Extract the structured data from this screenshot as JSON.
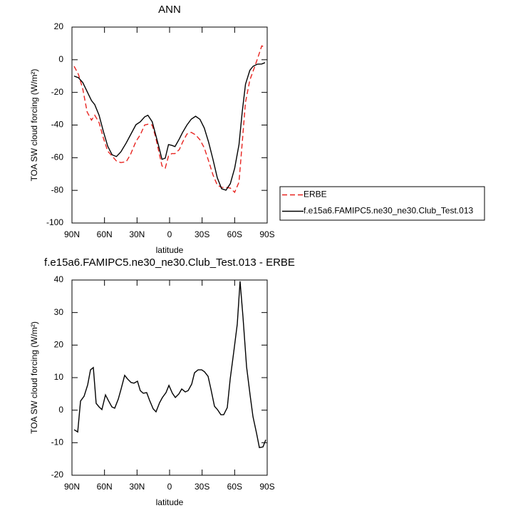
{
  "chart_data": [
    {
      "type": "line",
      "title": "ANN",
      "xlabel": "latitude",
      "ylabel": "TOA SW cloud forcing (W/m²)",
      "x": [
        88,
        84,
        80,
        76,
        72,
        69,
        65,
        61,
        57,
        53,
        49,
        45,
        40,
        36,
        31,
        27,
        23,
        20,
        16,
        13,
        10,
        7,
        4,
        1,
        -2,
        -5,
        -9,
        -12,
        -16,
        -20,
        -24,
        -28,
        -32,
        -36,
        -40,
        -44,
        -48,
        -52,
        -56,
        -60,
        -64,
        -67,
        -70,
        -74,
        -77,
        -81,
        -85,
        -88
      ],
      "series": [
        {
          "name": "ERBE",
          "color": "#e8231f",
          "line_style": "dashed",
          "values": [
            -4,
            -9,
            -18,
            -32,
            -37,
            -34,
            -38.5,
            -48,
            -56,
            -59,
            -62,
            -63,
            -62.5,
            -58,
            -50,
            -46,
            -40,
            -39.5,
            -40,
            -47,
            -56,
            -65,
            -66.4,
            -59,
            -57.5,
            -57.5,
            -55,
            -50.5,
            -45.5,
            -44.5,
            -46,
            -49,
            -54,
            -62,
            -70.5,
            -76.8,
            -78.2,
            -78.2,
            -78.6,
            -81.2,
            -75,
            -50.7,
            -26,
            -12.5,
            -7,
            0.5,
            8.5,
            7.5
          ]
        },
        {
          "name": "f.e15a6.FAMIPC5.ne30_ne30.Club_Test.013",
          "color": "#000000",
          "line_style": "solid",
          "values": [
            -10,
            -11,
            -14,
            -19.5,
            -25,
            -27.5,
            -34,
            -44,
            -53,
            -58.2,
            -59.3,
            -56.5,
            -51,
            -46,
            -39.8,
            -38,
            -35,
            -34,
            -38,
            -45.5,
            -53,
            -61,
            -60.3,
            -52,
            -52.4,
            -53.2,
            -48.5,
            -44.5,
            -40,
            -36.4,
            -34.6,
            -36.5,
            -41.8,
            -50.5,
            -61,
            -72.3,
            -79,
            -79.9,
            -75.9,
            -66.5,
            -52,
            -31.9,
            -15,
            -6.5,
            -4,
            -2.7,
            -2.6,
            -1.8
          ]
        }
      ],
      "xlim": [
        90,
        -90
      ],
      "xticks": [
        {
          "value": 90,
          "label": "90N"
        },
        {
          "value": 60,
          "label": "60N"
        },
        {
          "value": 30,
          "label": "30N"
        },
        0,
        {
          "value": -30,
          "label": "30S"
        },
        {
          "value": -60,
          "label": "60S"
        },
        {
          "value": -90,
          "label": "90S"
        }
      ],
      "ylim": [
        -100,
        20
      ],
      "yticks": [
        20,
        0,
        -20,
        -40,
        -60,
        -80,
        -100
      ],
      "legend": "right"
    },
    {
      "type": "line",
      "title": "f.e15a6.FAMIPC5.ne30_ne30.Club_Test.013 - ERBE",
      "xlabel": "latitude",
      "ylabel": "TOA SW cloud forcing (W/m²)",
      "x": [
        88,
        84.7,
        82.1,
        78.8,
        75.5,
        72.9,
        70.3,
        67.7,
        65,
        62.4,
        59.1,
        56.5,
        53.2,
        50.6,
        47.3,
        44.7,
        41.4,
        38.8,
        35.5,
        32.8,
        29.6,
        27,
        24.3,
        21.1,
        18.4,
        15.1,
        12.5,
        9.2,
        6.6,
        3.3,
        0.6,
        -2.6,
        -5.3,
        -8.6,
        -11.2,
        -14.5,
        -17.1,
        -20.4,
        -23,
        -26.3,
        -29.6,
        -32.2,
        -35.5,
        -38.1,
        -41.4,
        -44.1,
        -47.3,
        -49.9,
        -53.2,
        -55.9,
        -59.1,
        -62.4,
        -65,
        -67.7,
        -71,
        -74.3,
        -76.9,
        -80.2,
        -82.8,
        -86.1,
        -88.7
      ],
      "series": [
        {
          "color": "#000000",
          "line_style": "solid",
          "values": [
            -6,
            -6.7,
            2.8,
            4.3,
            7.8,
            12.4,
            13.1,
            2.1,
            1,
            0.2,
            4.7,
            3,
            1,
            0.6,
            3.4,
            6.5,
            10.7,
            9.6,
            8.5,
            8.3,
            8.9,
            6,
            5.2,
            5.4,
            3,
            0.4,
            -0.5,
            2.3,
            3.9,
            5.4,
            7.6,
            5.2,
            3.9,
            5,
            6.5,
            5.6,
            6,
            8,
            11.5,
            12.4,
            12.4,
            11.8,
            10.4,
            6.5,
            1.2,
            0.2,
            -1.4,
            -1.4,
            0.8,
            9.6,
            17.7,
            26.4,
            39.6,
            28.6,
            13.3,
            4.5,
            -2,
            -7.1,
            -11.5,
            -11.3,
            -9.1
          ]
        }
      ],
      "xlim": [
        90,
        -90
      ],
      "xticks": [
        {
          "value": 90,
          "label": "90N"
        },
        {
          "value": 60,
          "label": "60N"
        },
        {
          "value": 30,
          "label": "30N"
        },
        0,
        {
          "value": -30,
          "label": "30S"
        },
        {
          "value": -60,
          "label": "60S"
        },
        {
          "value": -90,
          "label": "90S"
        }
      ],
      "ylim": [
        -20,
        40
      ],
      "yticks": [
        40,
        30,
        20,
        10,
        0,
        -10,
        -20
      ]
    }
  ]
}
